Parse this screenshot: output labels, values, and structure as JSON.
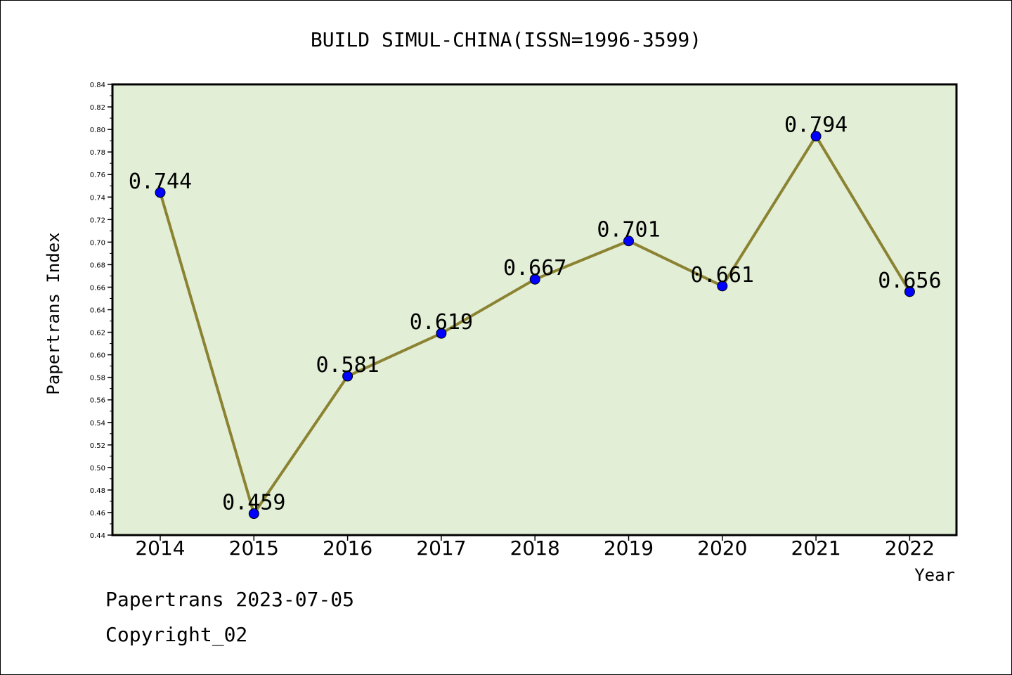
{
  "chart_data": {
    "type": "line",
    "title": "BUILD SIMUL-CHINA(ISSN=1996-3599)",
    "xlabel": "Year",
    "ylabel": "Papertrans Index",
    "categories": [
      "2014",
      "2015",
      "2016",
      "2017",
      "2018",
      "2019",
      "2020",
      "2021",
      "2022"
    ],
    "values": [
      0.744,
      0.459,
      0.581,
      0.619,
      0.667,
      0.701,
      0.661,
      0.794,
      0.656
    ],
    "data_labels": [
      "0.744",
      "0.459",
      "0.581",
      "0.619",
      "0.667",
      "0.701",
      "0.661",
      "0.794",
      "0.656"
    ],
    "ylim": [
      0.44,
      0.84
    ],
    "y_ticks": [
      "0.44",
      "0.46",
      "0.48",
      "0.50",
      "0.52",
      "0.54",
      "0.56",
      "0.58",
      "0.60",
      "0.62",
      "0.64",
      "0.66",
      "0.68",
      "0.70",
      "0.72",
      "0.74",
      "0.76",
      "0.78",
      "0.80",
      "0.82",
      "0.84"
    ],
    "grid": false,
    "colors": {
      "plot_background": "#e2efd6",
      "line": "#8b8232",
      "marker": "#0000ff"
    }
  },
  "footer": {
    "line1": "Papertrans 2023-07-05",
    "line2": "Copyright_02"
  }
}
